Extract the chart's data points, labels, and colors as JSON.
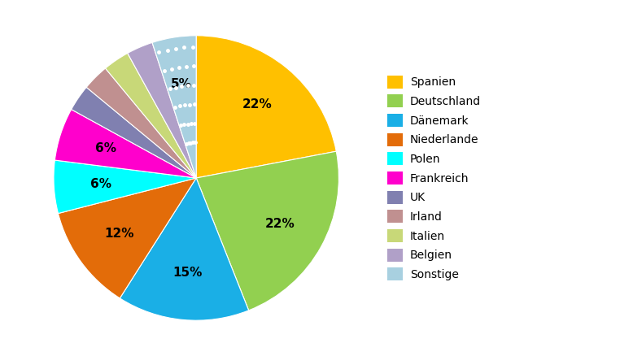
{
  "labels": [
    "Spanien",
    "Deutschland",
    "Dänemark",
    "Niederlande",
    "Polen",
    "Frankreich",
    "UK",
    "Irland",
    "Italien",
    "Belgien",
    "Sonstige"
  ],
  "values": [
    22,
    22,
    15,
    12,
    6,
    6,
    3,
    3,
    3,
    3,
    5
  ],
  "colors": [
    "#FFC000",
    "#92D050",
    "#1AAFE6",
    "#E36C09",
    "#00FFFF",
    "#FF00CC",
    "#8080B0",
    "#C09090",
    "#C8D878",
    "#B0A0C8",
    "#A8D0E0"
  ],
  "sonstige_dot_color": "#ffffff",
  "pct_labels": [
    "22%",
    "22%",
    "15%",
    "12%",
    "6%",
    "6%",
    "",
    "",
    "",
    "",
    "5%"
  ],
  "legend_labels": [
    "Spanien",
    "Deutschland",
    "Dänemark",
    "Niederlande",
    "Polen",
    "Frankreich",
    "UK",
    "Irland",
    "Italien",
    "Belgien",
    "Sonstige"
  ],
  "startangle": 90,
  "figsize": [
    7.78,
    4.38
  ],
  "dpi": 100
}
